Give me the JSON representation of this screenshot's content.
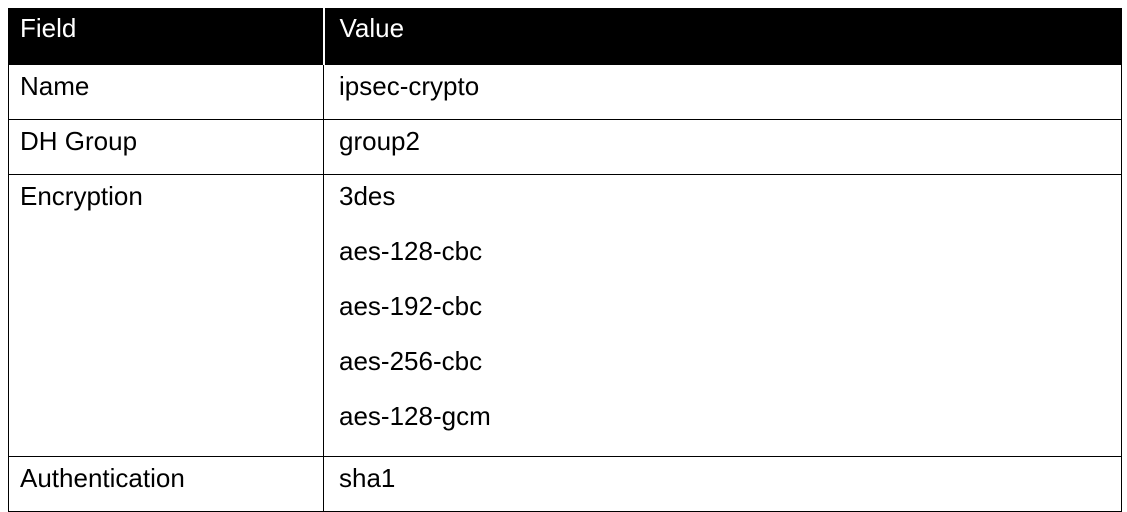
{
  "table": {
    "headers": [
      "Field",
      "Value"
    ],
    "rows": [
      {
        "field": "Name",
        "values": [
          "ipsec-crypto"
        ]
      },
      {
        "field": "DH Group",
        "values": [
          "group2"
        ]
      },
      {
        "field": "Encryption",
        "values": [
          "3des",
          "aes-128-cbc",
          "aes-192-cbc",
          "aes-256-cbc",
          "aes-128-gcm"
        ]
      },
      {
        "field": "Authentication",
        "values": [
          "sha1"
        ]
      }
    ],
    "colors": {
      "header_bg": "#000000",
      "header_text": "#ffffff",
      "border": "#000000"
    }
  }
}
